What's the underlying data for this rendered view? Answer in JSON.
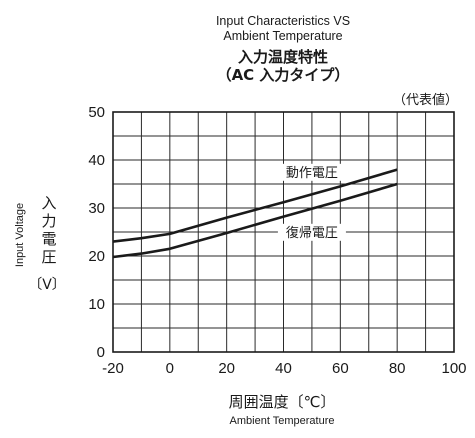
{
  "chart_data": {
    "type": "line",
    "title_en_line1": "Input Characteristics VS",
    "title_en_line2": "Ambient Temperature",
    "title_jp": "入力温度特性",
    "subtitle_jp": "（AC 入力タイプ）",
    "note": "（代表値）",
    "xlabel_jp": "周囲温度〔℃〕",
    "xlabel_en": "Ambient Temperature",
    "ylabel_en": "Input Voltage",
    "ylabel_jp_chars": [
      "入",
      "力",
      "電",
      "圧"
    ],
    "ylabel_unit": "〔V〕",
    "xlim": [
      -20,
      100
    ],
    "ylim": [
      0,
      50
    ],
    "x_ticks": [
      -20,
      0,
      20,
      40,
      60,
      80,
      100
    ],
    "y_ticks": [
      0,
      10,
      20,
      30,
      40,
      50
    ],
    "x_minor_step": 10,
    "y_minor_step": 5,
    "grid": true,
    "series": [
      {
        "name": "動作電圧",
        "x": [
          -20,
          -10,
          0,
          20,
          40,
          60,
          80
        ],
        "y": [
          23,
          23.7,
          24.6,
          28,
          31.2,
          34.5,
          38
        ]
      },
      {
        "name": "復帰電圧",
        "x": [
          -20,
          -10,
          0,
          20,
          40,
          60,
          80
        ],
        "y": [
          19.8,
          20.5,
          21.5,
          24.8,
          28.2,
          31.5,
          35
        ]
      }
    ]
  }
}
